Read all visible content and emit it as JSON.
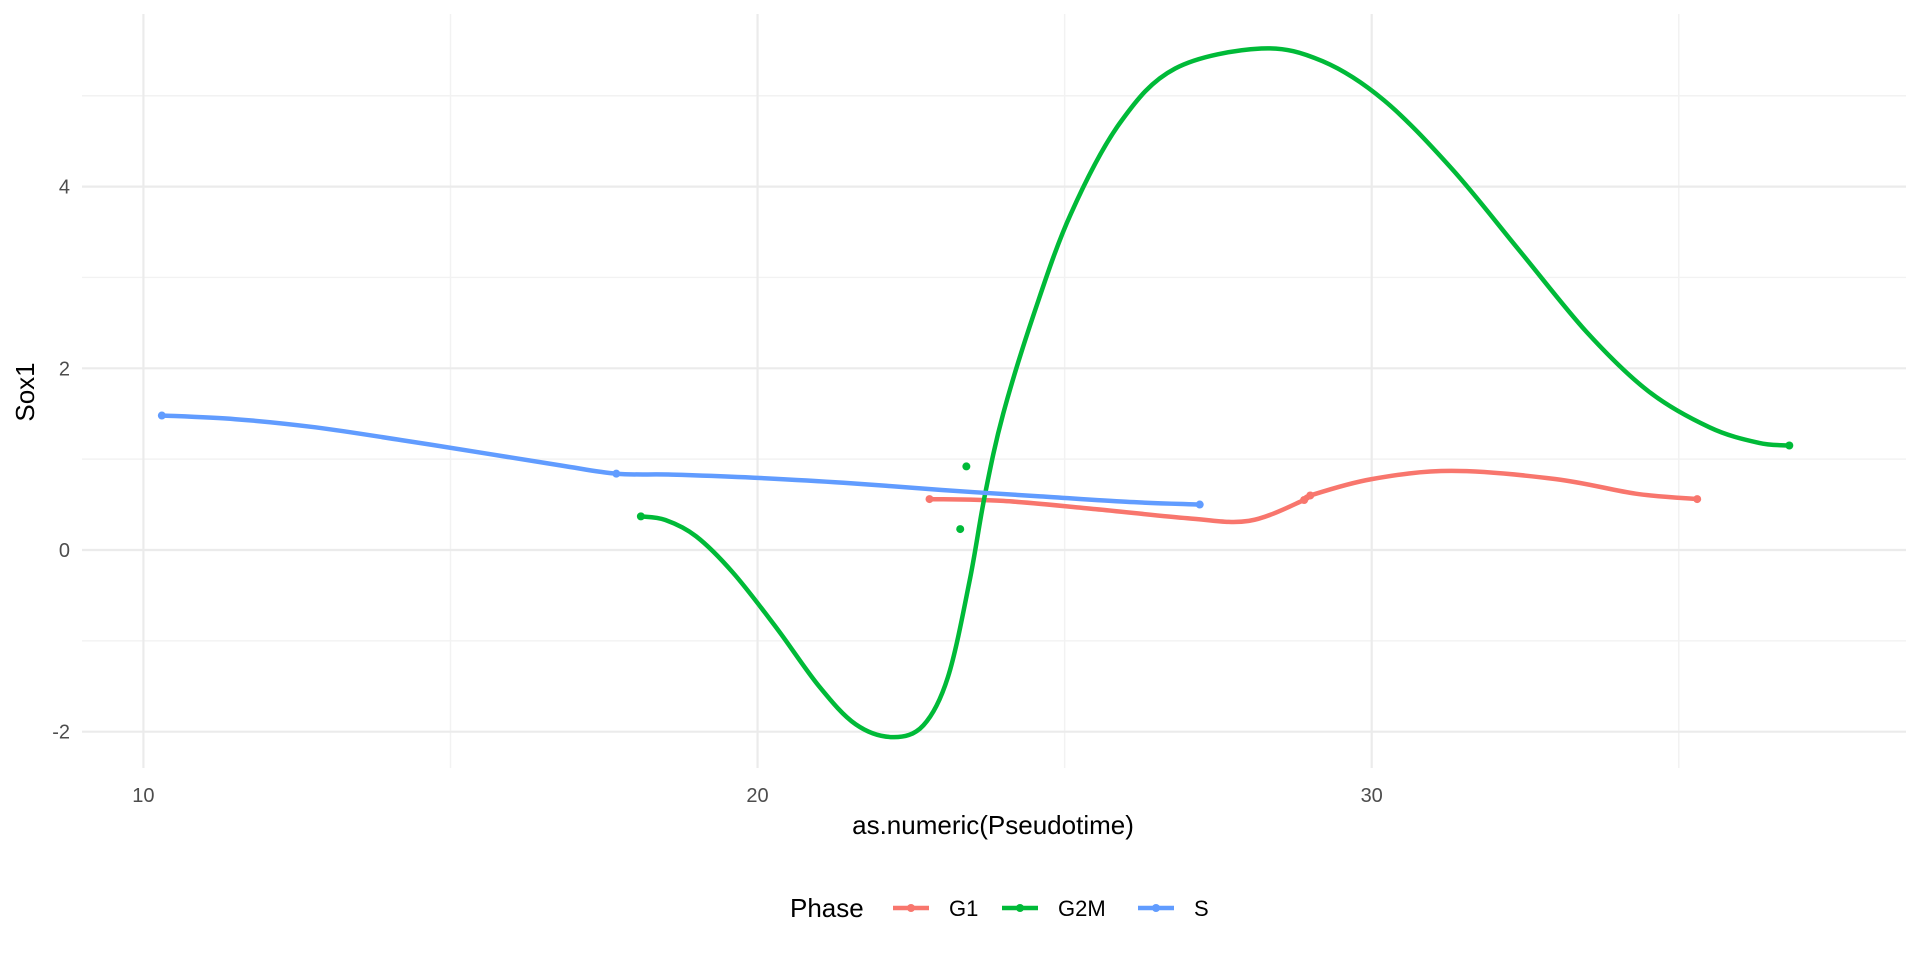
{
  "chart_data": {
    "type": "line",
    "xlabel": "as.numeric(Pseudotime)",
    "ylabel": "Sox1",
    "xlim": [
      9.0,
      38.7
    ],
    "ylim": [
      -2.4,
      5.9
    ],
    "x_major_ticks": [
      10,
      20,
      30
    ],
    "x_minor_ticks": [
      15,
      25,
      35
    ],
    "y_major_ticks": [
      -2,
      0,
      2,
      4
    ],
    "y_minor_ticks": [
      -1,
      1,
      3,
      5
    ],
    "x_tick_labels": [
      "10",
      "20",
      "30"
    ],
    "y_tick_labels": [
      "-2",
      "0",
      "2",
      "4"
    ],
    "grid": true,
    "legend": {
      "title": "Phase",
      "position": "bottom",
      "entries": [
        "G1",
        "G2M",
        "S"
      ]
    },
    "series": [
      {
        "name": "G1",
        "color": "#F8766D",
        "points": [
          [
            22.8,
            0.56
          ],
          [
            28.9,
            0.55
          ],
          [
            29.0,
            0.6
          ],
          [
            35.3,
            0.56
          ]
        ],
        "curve": [
          [
            22.8,
            0.56
          ],
          [
            24.0,
            0.54
          ],
          [
            25.5,
            0.45
          ],
          [
            27.0,
            0.35
          ],
          [
            28.0,
            0.32
          ],
          [
            28.9,
            0.55
          ],
          [
            29.0,
            0.6
          ],
          [
            30.0,
            0.78
          ],
          [
            31.3,
            0.87
          ],
          [
            33.0,
            0.78
          ],
          [
            34.3,
            0.62
          ],
          [
            35.3,
            0.56
          ]
        ]
      },
      {
        "name": "G2M",
        "color": "#00BA38",
        "points": [
          [
            18.1,
            0.37
          ],
          [
            23.3,
            0.23
          ],
          [
            23.4,
            0.92
          ],
          [
            36.8,
            1.15
          ]
        ],
        "curve": [
          [
            18.1,
            0.37
          ],
          [
            18.5,
            0.33
          ],
          [
            19.0,
            0.15
          ],
          [
            19.6,
            -0.25
          ],
          [
            20.3,
            -0.85
          ],
          [
            21.0,
            -1.5
          ],
          [
            21.6,
            -1.92
          ],
          [
            22.2,
            -2.06
          ],
          [
            22.7,
            -1.93
          ],
          [
            23.1,
            -1.4
          ],
          [
            23.45,
            -0.35
          ],
          [
            23.7,
            0.6
          ],
          [
            24.0,
            1.5
          ],
          [
            24.5,
            2.6
          ],
          [
            25.1,
            3.7
          ],
          [
            25.9,
            4.7
          ],
          [
            26.8,
            5.3
          ],
          [
            28.2,
            5.52
          ],
          [
            29.2,
            5.38
          ],
          [
            30.2,
            4.95
          ],
          [
            31.3,
            4.2
          ],
          [
            32.4,
            3.3
          ],
          [
            33.5,
            2.4
          ],
          [
            34.5,
            1.75
          ],
          [
            35.5,
            1.35
          ],
          [
            36.3,
            1.18
          ],
          [
            36.8,
            1.15
          ]
        ]
      },
      {
        "name": "S",
        "color": "#619CFF",
        "points": [
          [
            10.3,
            1.48
          ],
          [
            17.7,
            0.84
          ],
          [
            27.2,
            0.5
          ]
        ],
        "curve": [
          [
            10.3,
            1.48
          ],
          [
            11.5,
            1.44
          ],
          [
            12.8,
            1.35
          ],
          [
            14.2,
            1.21
          ],
          [
            15.6,
            1.06
          ],
          [
            16.8,
            0.93
          ],
          [
            17.7,
            0.84
          ],
          [
            18.6,
            0.83
          ],
          [
            19.8,
            0.8
          ],
          [
            21.4,
            0.74
          ],
          [
            23.0,
            0.66
          ],
          [
            24.6,
            0.59
          ],
          [
            26.0,
            0.53
          ],
          [
            27.2,
            0.5
          ]
        ]
      }
    ]
  }
}
